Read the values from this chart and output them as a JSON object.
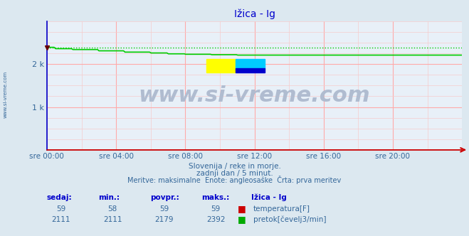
{
  "title": "Ižica - Ig",
  "bg_color": "#dce8f0",
  "plot_bg_color": "#e8f0f8",
  "grid_color_major": "#ffaaaa",
  "grid_color_minor": "#f5cccc",
  "x_ticks_labels": [
    "sre 00:00",
    "sre 04:00",
    "sre 08:00",
    "sre 12:00",
    "sre 16:00",
    "sre 20:00"
  ],
  "x_ticks_positions": [
    0,
    4,
    8,
    12,
    16,
    20
  ],
  "x_range": [
    0,
    24
  ],
  "y_range": [
    0,
    3000
  ],
  "y_ticks": [
    0,
    1000,
    2000
  ],
  "y_tick_labels": [
    "",
    "1 k",
    "2 k"
  ],
  "title_color": "#0000cc",
  "title_fontsize": 10,
  "axis_label_color": "#336699",
  "text_color": "#336699",
  "watermark_text": "www.si-vreme.com",
  "watermark_color": "#b0bcd0",
  "watermark_fontsize": 22,
  "sub_text1": "Slovenija / reke in morje.",
  "sub_text2": "zadnji dan / 5 minut.",
  "sub_text3": "Meritve: maksimalne  Enote: angleosaške  Črta: prva meritev",
  "legend_title": "Ižica - Ig",
  "legend_label1": "temperatura[F]",
  "legend_label2": "pretok[čevelj3/min]",
  "legend_color1": "#cc0000",
  "legend_color2": "#00aa00",
  "temp_color": "#cc0000",
  "flow_color": "#00cc00",
  "flow_dotted_color": "#00cc00",
  "flow_max": 2392,
  "flow_scale_max": 3000,
  "sidebar_text": "www.si-vreme.com",
  "sidebar_color": "#336699",
  "border_color_left": "#0000cc",
  "border_color_bottom": "#cc0000",
  "vals_temp": [
    "59",
    "58",
    "59",
    "59"
  ],
  "vals_flow": [
    "2111",
    "2111",
    "2179",
    "2392"
  ],
  "header_labels": [
    "sedaj:",
    "min.:",
    "povpr.:",
    "maks.:"
  ],
  "n_points": 288
}
